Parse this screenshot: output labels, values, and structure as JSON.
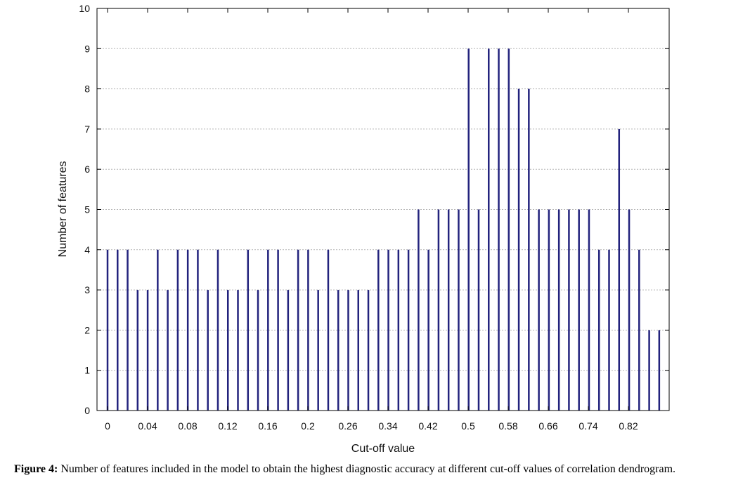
{
  "chart_data": {
    "type": "bar",
    "xlabel": "Cut-off value",
    "ylabel": "Number of features",
    "ylim": [
      0,
      10
    ],
    "yticks": [
      "0",
      "1",
      "2",
      "3",
      "4",
      "5",
      "6",
      "7",
      "8",
      "9",
      "10"
    ],
    "xtick_labels": [
      "0",
      "0.04",
      "0.08",
      "0.12",
      "0.16",
      "0.2",
      "0.26",
      "0.34",
      "0.42",
      "0.5",
      "0.58",
      "0.66",
      "0.74",
      "0.82"
    ],
    "grid": true,
    "bar_color": "#23237d",
    "values": [
      4,
      4,
      4,
      3,
      3,
      4,
      3,
      4,
      4,
      4,
      3,
      4,
      3,
      3,
      4,
      3,
      4,
      4,
      3,
      4,
      4,
      3,
      4,
      3,
      3,
      3,
      3,
      4,
      4,
      4,
      4,
      5,
      4,
      5,
      5,
      5,
      9,
      5,
      9,
      9,
      9,
      8,
      8,
      5,
      5,
      5,
      5,
      5,
      5,
      4,
      4,
      7,
      5,
      4,
      2,
      2
    ]
  },
  "caption": {
    "label": "Figure 4:",
    "text": " Number of features included in the model to obtain the highest diagnostic accuracy at different cut-off values of correlation dendrogram."
  }
}
